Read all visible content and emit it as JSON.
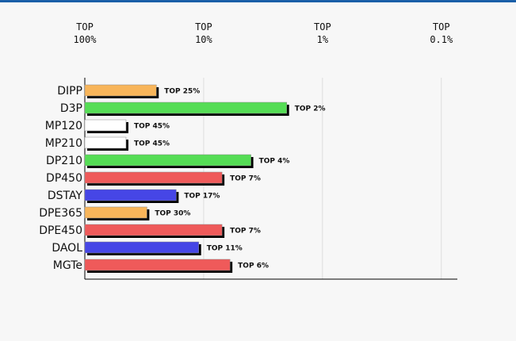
{
  "chart_data": {
    "type": "bar",
    "orientation": "horizontal",
    "log_scale": true,
    "grid": true,
    "categories": [
      "DIPP",
      "D3P",
      "MP120",
      "MP210",
      "DP210",
      "DP450",
      "DSTAY",
      "DPE365",
      "DPE450",
      "DAOL",
      "MGTe"
    ],
    "values": [
      25,
      2,
      45,
      45,
      4,
      7,
      17,
      30,
      7,
      11,
      6
    ],
    "value_labels": [
      "TOP 25%",
      "TOP 2%",
      "TOP 45%",
      "TOP 45%",
      "TOP 4%",
      "TOP 7%",
      "TOP 17%",
      "TOP 30%",
      "TOP 7%",
      "TOP 11%",
      "TOP 6%"
    ],
    "colors": [
      "#f8b55a",
      "#55dd55",
      "#ffffff",
      "#ffffff",
      "#55dd55",
      "#ef5a5a",
      "#4646e6",
      "#f8b55a",
      "#ef5a5a",
      "#4646e6",
      "#ef5a5a"
    ],
    "xlim": [
      100,
      0.07
    ],
    "xticks": [
      {
        "value": 100,
        "label": "TOP 100%"
      },
      {
        "value": 10,
        "label": "TOP 10%"
      },
      {
        "value": 1,
        "label": "TOP 1%"
      },
      {
        "value": 0.1,
        "label": "TOP 0.1%"
      }
    ]
  }
}
